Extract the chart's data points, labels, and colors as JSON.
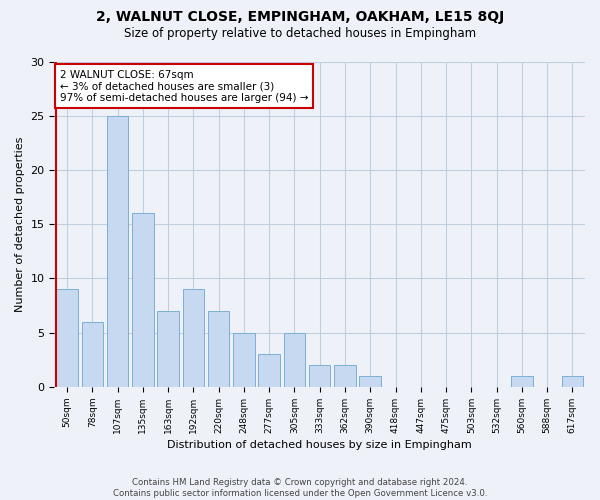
{
  "title": "2, WALNUT CLOSE, EMPINGHAM, OAKHAM, LE15 8QJ",
  "subtitle": "Size of property relative to detached houses in Empingham",
  "xlabel": "Distribution of detached houses by size in Empingham",
  "ylabel": "Number of detached properties",
  "categories": [
    "50sqm",
    "78sqm",
    "107sqm",
    "135sqm",
    "163sqm",
    "192sqm",
    "220sqm",
    "248sqm",
    "277sqm",
    "305sqm",
    "333sqm",
    "362sqm",
    "390sqm",
    "418sqm",
    "447sqm",
    "475sqm",
    "503sqm",
    "532sqm",
    "560sqm",
    "588sqm",
    "617sqm"
  ],
  "values": [
    9,
    6,
    25,
    16,
    7,
    9,
    7,
    5,
    3,
    5,
    2,
    2,
    1,
    0,
    0,
    0,
    0,
    0,
    1,
    0,
    1
  ],
  "bar_color": "#c6d9f1",
  "bar_edge_color": "#7bafd4",
  "property_label": "2 WALNUT CLOSE: 67sqm",
  "annotation_line1": "← 3% of detached houses are smaller (3)",
  "annotation_line2": "97% of semi-detached houses are larger (94) →",
  "vline_color": "#cc0000",
  "annotation_box_color": "#ffffff",
  "annotation_box_edge": "#cc0000",
  "ylim": [
    0,
    30
  ],
  "yticks": [
    0,
    5,
    10,
    15,
    20,
    25,
    30
  ],
  "grid_color": "#c0cfe0",
  "background_color": "#eef2f8",
  "footer1": "Contains HM Land Registry data © Crown copyright and database right 2024.",
  "footer2": "Contains public sector information licensed under the Open Government Licence v3.0."
}
